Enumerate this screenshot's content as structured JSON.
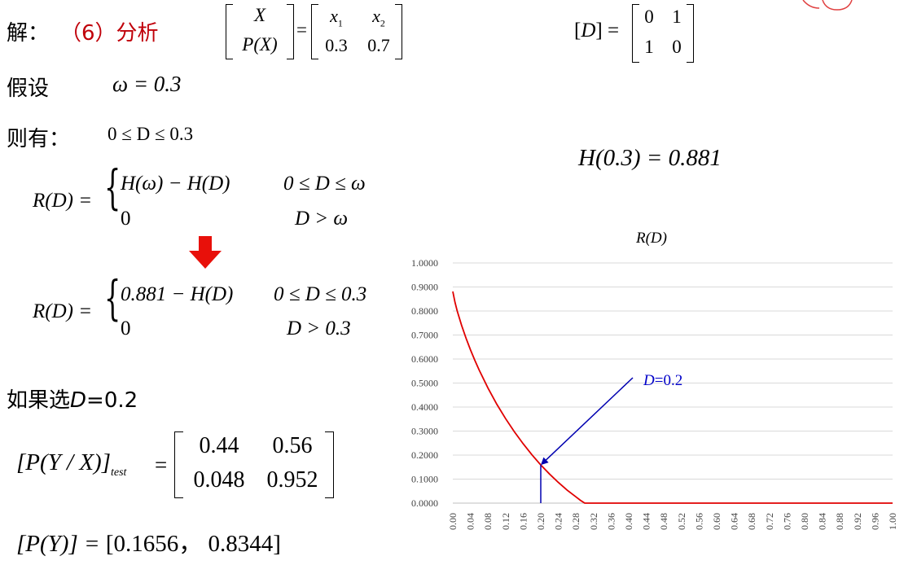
{
  "solution": {
    "jie_label": "解：",
    "part_label": "（6）分析",
    "source_matrix": {
      "X": "X",
      "PX": "P(X)",
      "eq": "=",
      "x1": "x",
      "x1_sub": "1",
      "x2": "x",
      "x2_sub": "2",
      "p1": "0.3",
      "p2": "0.7"
    },
    "distortion_matrix": {
      "label": "[D]",
      "eq": "=",
      "cells": [
        "0",
        "1",
        "1",
        "0"
      ]
    },
    "assume_label": "假设",
    "omega_eq": "ω = 0.3",
    "then_label": "则有：",
    "range": "0 ≤ D ≤ 0.3",
    "entropy_value": "H(0.3) = 0.881",
    "rd_general": {
      "lhs": "R(D) =",
      "case1_expr": "H(ω) − H(D)",
      "case1_cond": "0 ≤ D ≤ ω",
      "case2_expr": "0",
      "case2_cond": "D > ω"
    },
    "arrow_glyph": "⬇",
    "rd_specific": {
      "lhs": "R(D) =",
      "case1_expr": "0.881 − H(D)",
      "case1_cond": "0 ≤ D ≤ 0.3",
      "case2_expr": "0",
      "case2_cond": "D > 0.3"
    },
    "choose_prefix": "如果选",
    "choose_var": "D",
    "choose_suffix": "=0.2",
    "test_channel": {
      "lhs": "[P(Y / X)]",
      "sub": "test",
      "eq": "=",
      "cells": [
        "0.44",
        "0.56",
        "0.048",
        "0.952"
      ]
    },
    "output_dist": {
      "lhs": "[P(Y)] =",
      "value": "[0.1656，  0.8344]"
    }
  },
  "chart_data": {
    "type": "line",
    "title": "R(D)",
    "x_ticks": [
      "0.00",
      "0.04",
      "0.08",
      "0.12",
      "0.16",
      "0.20",
      "0.24",
      "0.28",
      "0.32",
      "0.36",
      "0.40",
      "0.44",
      "0.48",
      "0.52",
      "0.56",
      "0.60",
      "0.64",
      "0.68",
      "0.72",
      "0.76",
      "0.80",
      "0.84",
      "0.88",
      "0.92",
      "0.96",
      "1.00"
    ],
    "y_ticks": [
      "0.0000",
      "0.1000",
      "0.2000",
      "0.3000",
      "0.4000",
      "0.5000",
      "0.6000",
      "0.7000",
      "0.8000",
      "0.9000",
      "1.0000"
    ],
    "xlim": [
      0,
      1
    ],
    "ylim": [
      0,
      1
    ],
    "grid": "horizontal",
    "series": [
      {
        "color": "#e00000",
        "x": [
          0.0,
          0.005,
          0.01,
          0.02,
          0.03,
          0.04,
          0.05,
          0.06,
          0.08,
          0.1,
          0.12,
          0.14,
          0.16,
          0.18,
          0.2,
          0.22,
          0.24,
          0.26,
          0.28,
          0.29,
          0.3,
          0.32,
          0.4,
          0.5,
          0.6,
          0.7,
          0.8,
          0.9,
          1.0
        ],
        "values": [
          0.881,
          0.836,
          0.8,
          0.74,
          0.687,
          0.639,
          0.595,
          0.554,
          0.479,
          0.412,
          0.352,
          0.297,
          0.247,
          0.201,
          0.159,
          0.121,
          0.086,
          0.054,
          0.026,
          0.012,
          0.0,
          0.0,
          0.0,
          0.0,
          0.0,
          0.0,
          0.0,
          0.0,
          0.0
        ]
      }
    ],
    "annotation": {
      "text_var": "D",
      "text_rest": "=0.2",
      "target_x": 0.2,
      "target_y": 0.159,
      "color": "#0000b0"
    }
  }
}
